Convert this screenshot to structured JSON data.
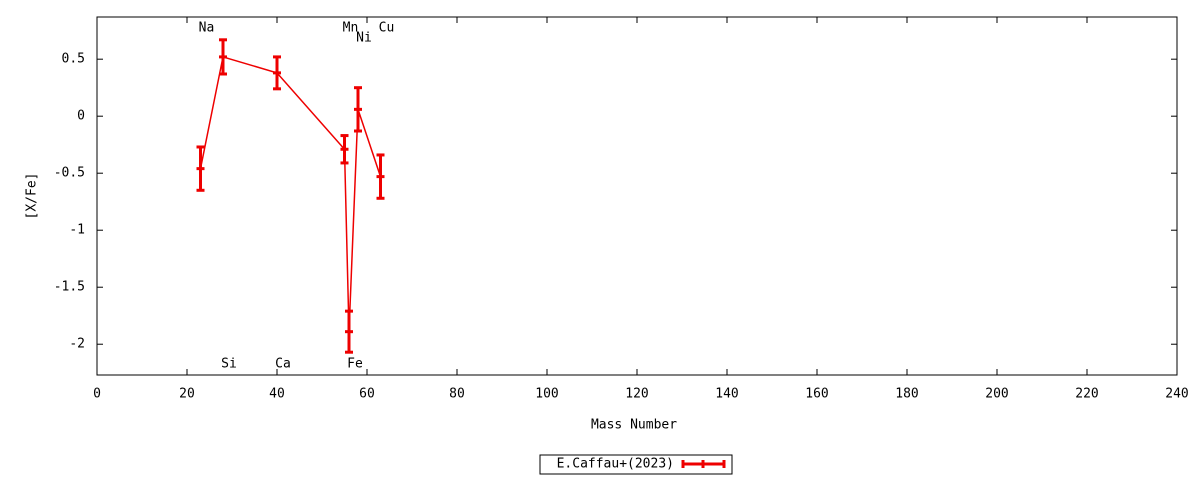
{
  "chart_data": {
    "type": "errorbar-line",
    "x_label": "Mass Number",
    "y_label": "[X/Fe]",
    "x": [
      23,
      28,
      40,
      55,
      56,
      58,
      63
    ],
    "point_labels": [
      "Na",
      "Si",
      "Ca",
      "Mn",
      "Fe",
      "Ni",
      "Cu"
    ],
    "series": [
      {
        "name": "E.Caffau+(2023)",
        "color": "#ee0000",
        "values": [
          -0.46,
          0.52,
          0.38,
          -0.29,
          -1.89,
          0.06,
          -0.53
        ],
        "errors": [
          0.19,
          0.15,
          0.14,
          0.12,
          0.18,
          0.19,
          0.19
        ]
      }
    ],
    "xlim": [
      0,
      240
    ],
    "xticks": [
      0,
      20,
      40,
      60,
      80,
      100,
      120,
      140,
      160,
      180,
      200,
      220,
      240
    ],
    "ylim": [
      -2.27,
      0.87
    ],
    "yticks": [
      0.5,
      0,
      -0.5,
      -1,
      -1.5,
      -2
    ]
  }
}
